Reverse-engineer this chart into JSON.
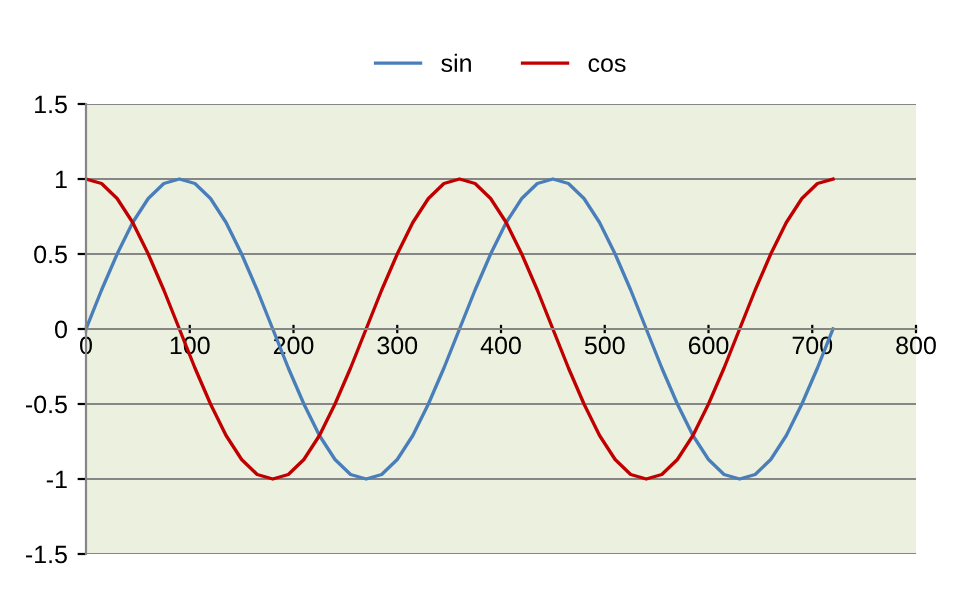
{
  "chart_data": {
    "type": "line",
    "x": [
      0,
      15,
      30,
      45,
      60,
      75,
      90,
      105,
      120,
      135,
      150,
      165,
      180,
      195,
      210,
      225,
      240,
      255,
      270,
      285,
      300,
      315,
      330,
      345,
      360,
      375,
      390,
      405,
      420,
      435,
      450,
      465,
      480,
      495,
      510,
      525,
      540,
      555,
      570,
      585,
      600,
      615,
      630,
      645,
      660,
      675,
      690,
      705,
      720
    ],
    "series": [
      {
        "name": "sin",
        "color": "#4a7ebb",
        "values": [
          0,
          0.26,
          0.5,
          0.71,
          0.87,
          0.97,
          1,
          0.97,
          0.87,
          0.71,
          0.5,
          0.26,
          0,
          -0.26,
          -0.5,
          -0.71,
          -0.87,
          -0.97,
          -1,
          -0.97,
          -0.87,
          -0.71,
          -0.5,
          -0.26,
          0,
          0.26,
          0.5,
          0.71,
          0.87,
          0.97,
          1,
          0.97,
          0.87,
          0.71,
          0.5,
          0.26,
          0,
          -0.26,
          -0.5,
          -0.71,
          -0.87,
          -0.97,
          -1,
          -0.97,
          -0.87,
          -0.71,
          -0.5,
          -0.26,
          0
        ]
      },
      {
        "name": "cos",
        "color": "#c00000",
        "values": [
          1,
          0.97,
          0.87,
          0.71,
          0.5,
          0.26,
          0,
          -0.26,
          -0.5,
          -0.71,
          -0.87,
          -0.97,
          -1,
          -0.97,
          -0.87,
          -0.71,
          -0.5,
          -0.26,
          0,
          0.26,
          0.5,
          0.71,
          0.87,
          0.97,
          1,
          0.97,
          0.87,
          0.71,
          0.5,
          0.26,
          0,
          -0.26,
          -0.5,
          -0.71,
          -0.87,
          -0.97,
          -1,
          -0.97,
          -0.87,
          -0.71,
          -0.5,
          -0.26,
          0,
          0.26,
          0.5,
          0.71,
          0.87,
          0.97,
          1
        ]
      }
    ],
    "xlim": [
      0,
      800
    ],
    "xticks": [
      0,
      100,
      200,
      300,
      400,
      500,
      600,
      700,
      800
    ],
    "ylim": [
      -1.5,
      1.5
    ],
    "yticks": [
      -1.5,
      -1,
      -0.5,
      0,
      0.5,
      1,
      1.5
    ],
    "grid": "y",
    "legend": "top",
    "marker": "none",
    "line_style": "solid"
  }
}
